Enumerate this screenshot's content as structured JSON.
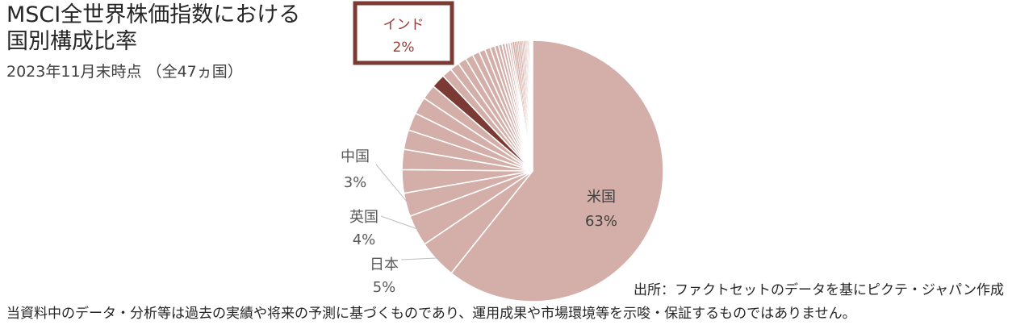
{
  "header": {
    "title_line1": "MSCI全世界株価指数における",
    "title_line2": "国別構成比率",
    "subtitle": "2023年11月末時点 （全47ヵ国）"
  },
  "source": "出所：ファクトセットのデータを基にピクテ・ジャパン作成",
  "disclaimer": "当資料中のデータ・分析等は過去の実績や将来の予測に基づくものであり、運用成果や市場環境等を示唆・保証するものではありません。",
  "colors": {
    "main_slice": "#d4aea8",
    "highlight_slice": "#7b3a33",
    "slice_border": "#ffffff",
    "callout_border": "#7b3a33",
    "callout_text": "#9b3b35",
    "leader_line": "#bfbfbf"
  },
  "chart_data": {
    "type": "pie",
    "title": "MSCI全世界株価指数における国別構成比率",
    "subtitle": "2023年11月末時点 （全47ヵ国）",
    "highlight": "インド",
    "slices": [
      {
        "name": "米国",
        "label": "63%",
        "value": 63
      },
      {
        "name": "日本",
        "label": "5%",
        "value": 5
      },
      {
        "name": "英国",
        "label": "4%",
        "value": 4
      },
      {
        "name": "中国",
        "label": "3%",
        "value": 3
      },
      {
        "name": "",
        "value": 3
      },
      {
        "name": "",
        "value": 2.6
      },
      {
        "name": "",
        "value": 2.5
      },
      {
        "name": "",
        "value": 2.3
      },
      {
        "name": "",
        "value": 2.2
      },
      {
        "name": "",
        "value": 1.9
      },
      {
        "name": "インド",
        "label": "2%",
        "value": 1.8
      },
      {
        "name": "",
        "value": 1.3
      },
      {
        "name": "",
        "value": 1.2
      },
      {
        "name": "",
        "value": 1.1
      },
      {
        "name": "",
        "value": 1.0
      },
      {
        "name": "",
        "value": 0.9
      },
      {
        "name": "",
        "value": 0.8
      },
      {
        "name": "",
        "value": 0.7
      },
      {
        "name": "",
        "value": 0.6
      },
      {
        "name": "",
        "value": 0.5
      },
      {
        "name": "",
        "value": 0.45
      },
      {
        "name": "",
        "value": 0.4
      },
      {
        "name": "",
        "value": 0.35
      },
      {
        "name": "",
        "value": 0.3
      },
      {
        "name": "",
        "value": 0.3
      },
      {
        "name": "",
        "value": 0.25
      },
      {
        "name": "",
        "value": 0.25
      },
      {
        "name": "",
        "value": 0.2
      },
      {
        "name": "",
        "value": 0.2
      },
      {
        "name": "",
        "value": 0.2
      },
      {
        "name": "",
        "value": 0.15
      },
      {
        "name": "",
        "value": 0.15
      },
      {
        "name": "",
        "value": 0.15
      },
      {
        "name": "",
        "value": 0.12
      },
      {
        "name": "",
        "value": 0.12
      },
      {
        "name": "",
        "value": 0.1
      },
      {
        "name": "",
        "value": 0.1
      },
      {
        "name": "",
        "value": 0.1
      },
      {
        "name": "",
        "value": 0.08
      },
      {
        "name": "",
        "value": 0.08
      },
      {
        "name": "",
        "value": 0.07
      },
      {
        "name": "",
        "value": 0.06
      },
      {
        "name": "",
        "value": 0.05
      },
      {
        "name": "",
        "value": 0.05
      },
      {
        "name": "",
        "value": 0.04
      },
      {
        "name": "",
        "value": 0.03
      },
      {
        "name": "",
        "value": 0.03
      }
    ]
  }
}
